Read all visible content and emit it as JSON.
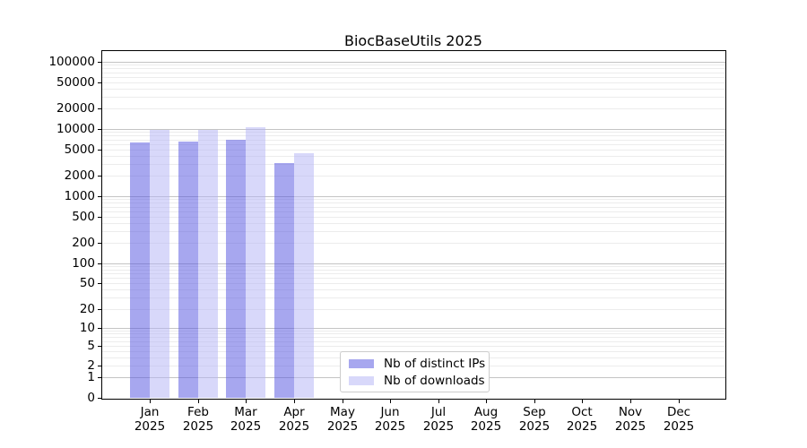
{
  "title": "BiocBaseUtils 2025",
  "chart_data": {
    "type": "bar",
    "categories": [
      "Jan",
      "Feb",
      "Mar",
      "Apr",
      "May",
      "Jun",
      "Jul",
      "Aug",
      "Sep",
      "Oct",
      "Nov",
      "Dec"
    ],
    "year": "2025",
    "series": [
      {
        "name": "Nb of distinct IPs",
        "fill_rgba": "rgba(79,79,223,0.5)",
        "solid_hex": "#a7a7ef",
        "values": [
          6300,
          6600,
          6900,
          3100,
          null,
          null,
          null,
          null,
          null,
          null,
          null,
          null
        ]
      },
      {
        "name": "Nb of downloads",
        "fill_rgba": "rgba(177,177,245,0.5)",
        "solid_hex": "#d8d8fa",
        "values": [
          9600,
          9700,
          10700,
          4400,
          null,
          null,
          null,
          null,
          null,
          null,
          null,
          null
        ]
      }
    ],
    "y_axis": {
      "scale": "log10(value+1)",
      "tick_values": [
        100000,
        50000,
        20000,
        10000,
        5000,
        2000,
        1000,
        500,
        200,
        100,
        50,
        20,
        10,
        5,
        2,
        1,
        0
      ],
      "tick_labels": [
        "100000",
        "50000",
        "20000",
        "10000",
        "5000",
        "2000",
        "1000",
        "500",
        "200",
        "100",
        "50",
        "20",
        "10",
        "5",
        "2",
        "1",
        "0"
      ],
      "ylim": [
        0,
        150000
      ]
    },
    "grid": true,
    "legend_position": "bottom-center-inside",
    "title": "BiocBaseUtils 2025",
    "xlabel": "",
    "ylabel": ""
  },
  "legend": {
    "items": [
      {
        "label": "Nb of distinct IPs"
      },
      {
        "label": "Nb of downloads"
      }
    ]
  },
  "colors": {
    "background": "#ffffff",
    "axis": "#000000",
    "text": "#000000",
    "grid_minor": "#ececec",
    "grid_major": "#c4c4c4",
    "bar_distinct_ips": "#a7a7ef",
    "bar_downloads": "#d8d8fa",
    "legend_border": "#cccccc"
  }
}
